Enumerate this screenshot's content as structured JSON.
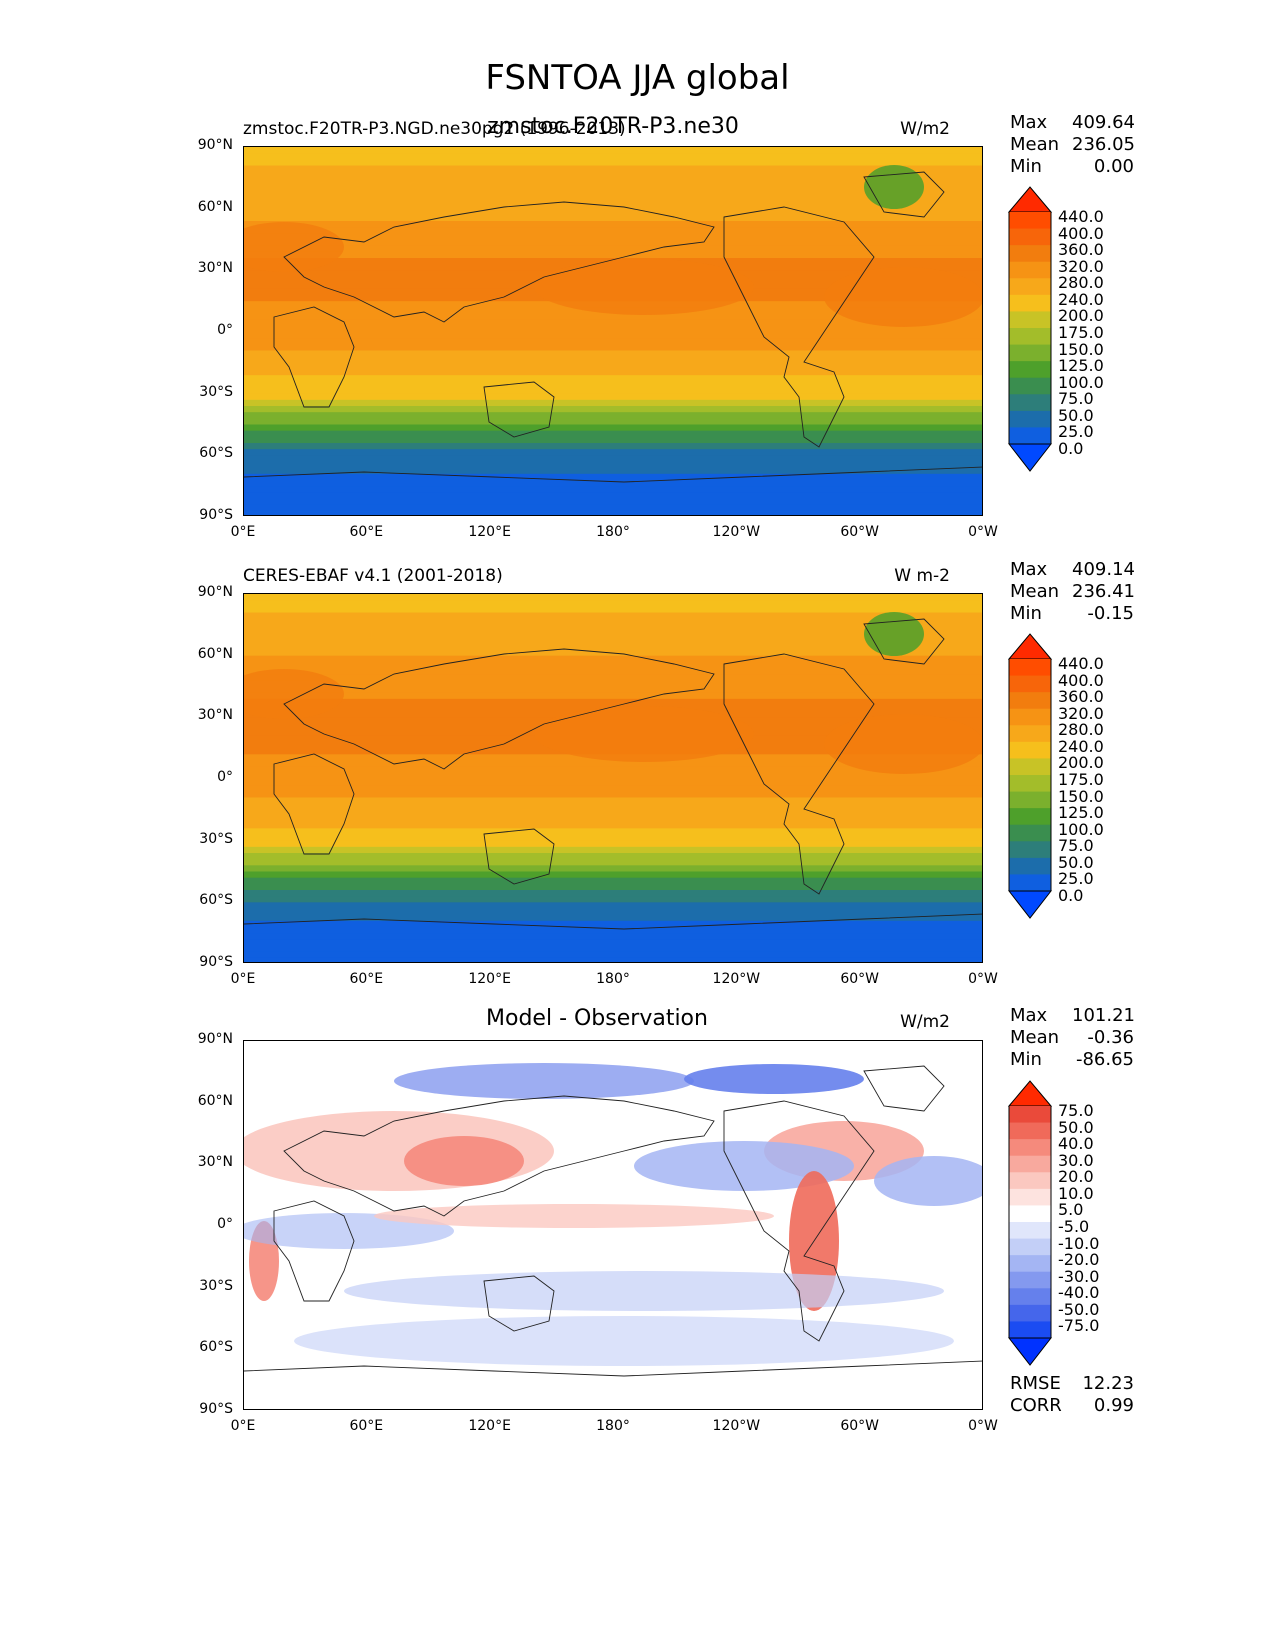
{
  "figure": {
    "suptitle": "FSNTOA JJA global"
  },
  "panels": [
    {
      "id": "test",
      "left_title": "zmstoc.F20TR-P3.NGD.ne30pg2 (1996-2013)",
      "center_title": "zmstoc.F20TR-P3.ne30",
      "right_title": "W/m2",
      "stats": {
        "Max": "409.64",
        "Mean": "236.05",
        "Min": "0.00"
      }
    },
    {
      "id": "reference",
      "left_title": "CERES-EBAF v4.1 (2001-2018)",
      "center_title": "",
      "right_title": "W m-2",
      "stats": {
        "Max": "409.14",
        "Mean": "236.41",
        "Min": "-0.15"
      }
    },
    {
      "id": "difference",
      "left_title": "",
      "center_title": "Model - Observation",
      "right_title": "W/m2",
      "stats": {
        "Max": "101.21",
        "Mean": "-0.36",
        "Min": "-86.65"
      },
      "extra_stats": {
        "RMSE": "12.23",
        "CORR": "0.99"
      }
    }
  ],
  "axes": {
    "y_ticks": [
      "90°N",
      "60°N",
      "30°N",
      "0°",
      "30°S",
      "60°S",
      "90°S"
    ],
    "x_ticks": [
      "0°E",
      "60°E",
      "120°E",
      "180°",
      "120°W",
      "60°W",
      "0°W"
    ]
  },
  "colorbars": {
    "field": {
      "levels": [
        "440.0",
        "400.0",
        "360.0",
        "320.0",
        "280.0",
        "240.0",
        "200.0",
        "175.0",
        "150.0",
        "125.0",
        "100.0",
        "75.0",
        "50.0",
        "25.0",
        "0.0"
      ],
      "colors": [
        "#ff2a00",
        "#ff4d00",
        "#f7650a",
        "#f27d0e",
        "#f69314",
        "#f7a81a",
        "#f6bf1c",
        "#c8c326",
        "#a3bd2a",
        "#7bb02d",
        "#4ea02b",
        "#3a8e4f",
        "#2d7e7a",
        "#1c6dab",
        "#0f5fe0",
        "#0049ff"
      ]
    },
    "diff": {
      "levels": [
        "75.0",
        "50.0",
        "40.0",
        "30.0",
        "20.0",
        "10.0",
        "5.0",
        "-5.0",
        "-10.0",
        "-20.0",
        "-30.0",
        "-40.0",
        "-50.0",
        "-75.0"
      ],
      "colors": [
        "#ff2a00",
        "#ea4a3a",
        "#f06a5a",
        "#f58a7c",
        "#f8a99e",
        "#fbc8c0",
        "#fde3df",
        "#ffffff",
        "#e0e6fb",
        "#c3cff7",
        "#a4b5f3",
        "#8499ef",
        "#6580ec",
        "#4566eb",
        "#1b4cf2",
        "#0032ff"
      ]
    }
  },
  "chart_data": [
    {
      "type": "heatmap",
      "title": "zmstoc.F20TR-P3.ne30",
      "subtitle": "zmstoc.F20TR-P3.NGD.ne30pg2 (1996-2013)",
      "units": "W/m2",
      "x_range": [
        0,
        360
      ],
      "y_range": [
        -90,
        90
      ],
      "zonal_profile": {
        "lat": [
          90,
          75,
          60,
          45,
          30,
          15,
          0,
          -15,
          -30,
          -40,
          -50,
          -60,
          -75,
          -90
        ],
        "value": [
          220,
          250,
          270,
          300,
          330,
          320,
          300,
          260,
          210,
          150,
          90,
          40,
          15,
          0
        ]
      },
      "max": 409.64,
      "mean": 236.05,
      "min": 0.0
    },
    {
      "type": "heatmap",
      "title": "CERES-EBAF v4.1 (2001-2018)",
      "units": "W m-2",
      "x_range": [
        0,
        360
      ],
      "y_range": [
        -90,
        90
      ],
      "zonal_profile": {
        "lat": [
          90,
          75,
          60,
          45,
          30,
          15,
          0,
          -15,
          -30,
          -40,
          -50,
          -60,
          -75,
          -90
        ],
        "value": [
          220,
          250,
          280,
          310,
          335,
          325,
          300,
          265,
          215,
          155,
          95,
          45,
          15,
          0
        ]
      },
      "max": 409.14,
      "mean": 236.41,
      "min": -0.15
    },
    {
      "type": "heatmap",
      "title": "Model - Observation",
      "units": "W/m2",
      "x_range": [
        0,
        360
      ],
      "y_range": [
        -90,
        90
      ],
      "max": 101.21,
      "mean": -0.36,
      "min": -86.65,
      "rmse": 12.23,
      "corr": 0.99
    }
  ]
}
